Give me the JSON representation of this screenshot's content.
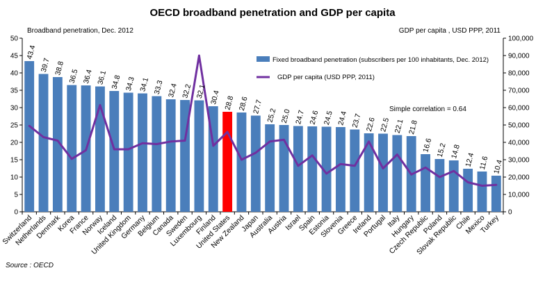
{
  "chart_data": {
    "type": "bar",
    "title": "OECD broadband penetration and GDP per capita",
    "left_axis_label": "Broadband penetration, Dec. 2012",
    "right_axis_label": "GDP per capita , USD PPP, 2011",
    "source": "Source : OECD",
    "annotation": "Simple correlation = 0.64",
    "y_left": {
      "min": 0,
      "max": 50,
      "ticks": [
        "0",
        "5",
        "10",
        "15",
        "20",
        "25",
        "30",
        "35",
        "40",
        "45",
        "50"
      ]
    },
    "y_right": {
      "min": 0,
      "max": 100000,
      "ticks": [
        "0",
        "10,000",
        "20,000",
        "30,000",
        "40,000",
        "50,000",
        "60,000",
        "70,000",
        "80,000",
        "90,000",
        "100,000"
      ]
    },
    "categories": [
      "Switzerland",
      "Netherlands",
      "Denmark",
      "Korea",
      "France",
      "Norway",
      "Iceland",
      "United Kingdom",
      "Germany",
      "Belgium",
      "Canada",
      "Sweden",
      "Luxembourg",
      "Finland",
      "United States",
      "New Zealand",
      "Japan",
      "Australia",
      "Austria",
      "Israel",
      "Spain",
      "Estonia",
      "Slovenia",
      "Greece",
      "Ireland",
      "Portugal",
      "Italy",
      "Hungary",
      "Czech Republic",
      "Poland",
      "Slovak Republic",
      "Chile",
      "Mexico",
      "Turkey"
    ],
    "series": [
      {
        "name": "Fixed broadband penetration (subscribers per 100 inhabitants, Dec. 2012)",
        "kind": "bar",
        "axis": "left",
        "color": "#4a7ebb",
        "highlight": {
          "category": "United States",
          "color": "#ff0000"
        },
        "values": [
          43.4,
          39.7,
          38.8,
          36.5,
          36.4,
          36.1,
          34.8,
          34.3,
          34.1,
          33.3,
          32.4,
          32.2,
          32.1,
          30.4,
          28.8,
          28.6,
          27.7,
          25.2,
          25.0,
          24.7,
          24.6,
          24.5,
          24.4,
          23.7,
          22.6,
          22.5,
          22.1,
          21.8,
          16.6,
          15.2,
          14.8,
          12.4,
          11.6,
          10.4
        ],
        "labels": [
          "43.4",
          "39.7",
          "38.8",
          "36.5",
          "36.4",
          "36.1",
          "34.8",
          "34.3",
          "34.1",
          "33.3",
          "32.4",
          "32.2",
          "32.1",
          "30.4",
          "28.8",
          "28.6",
          "27.7",
          "25.2",
          "25.0",
          "24.7",
          "24.6",
          "24.5",
          "24.4",
          "23.7",
          "22.6",
          "22.5",
          "22.1",
          "21.8",
          "16.6",
          "15.2",
          "14.8",
          "12.4",
          "11.6",
          "10.4"
        ]
      },
      {
        "name": "GDP per capita (USD PPP, 2011)",
        "kind": "line",
        "axis": "right",
        "color": "#7030a0",
        "values": [
          49500,
          43000,
          41000,
          30500,
          35500,
          61500,
          36000,
          36000,
          39500,
          39000,
          40500,
          41000,
          90000,
          38000,
          46000,
          30000,
          34000,
          40500,
          41500,
          26500,
          32500,
          22000,
          27500,
          26500,
          40500,
          25000,
          33000,
          21500,
          25500,
          20000,
          23500,
          17000,
          15000,
          15500
        ]
      }
    ],
    "legend": {
      "position": "top-right"
    },
    "grid": false
  }
}
